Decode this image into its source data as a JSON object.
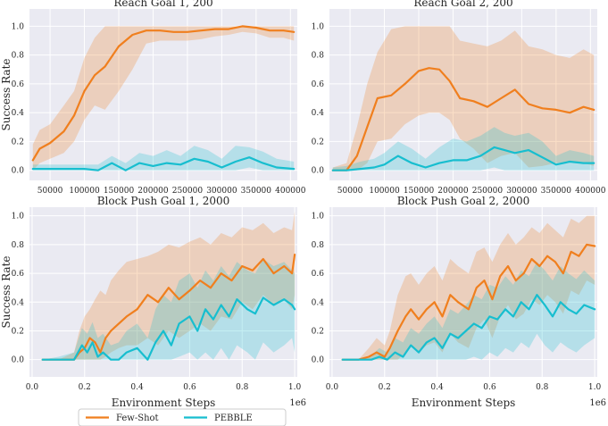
{
  "chart_data": [
    {
      "type": "line",
      "title": "Reach Goal 1, 200",
      "xlabel": "",
      "ylabel": "Success Rate",
      "xlim": [
        20000,
        410000
      ],
      "ylim": [
        -0.07,
        1.12
      ],
      "xticks": [
        50000,
        100000,
        150000,
        200000,
        250000,
        300000,
        350000,
        400000
      ],
      "xtick_labels": [
        "50000",
        "100000",
        "150000",
        "200000",
        "250000",
        "300000",
        "350000",
        "400000"
      ],
      "yticks": [
        0.0,
        0.2,
        0.4,
        0.6,
        0.8,
        1.0
      ],
      "ytick_labels": [
        "0.0",
        "0.2",
        "0.4",
        "0.6",
        "0.8",
        "1.0"
      ],
      "series": [
        {
          "name": "Few-Shot",
          "color": "#f07f1e",
          "x": [
            25000,
            35000,
            50000,
            70000,
            85000,
            100000,
            115000,
            130000,
            150000,
            170000,
            190000,
            210000,
            230000,
            250000,
            270000,
            290000,
            310000,
            330000,
            350000,
            370000,
            390000,
            405000
          ],
          "y": [
            0.07,
            0.15,
            0.19,
            0.27,
            0.38,
            0.55,
            0.66,
            0.72,
            0.86,
            0.94,
            0.97,
            0.97,
            0.96,
            0.96,
            0.97,
            0.98,
            0.98,
            1.0,
            0.99,
            0.97,
            0.97,
            0.96
          ],
          "lower": [
            0.0,
            0.05,
            0.08,
            0.12,
            0.2,
            0.35,
            0.45,
            0.42,
            0.55,
            0.7,
            0.88,
            0.9,
            0.9,
            0.9,
            0.91,
            0.93,
            0.94,
            0.96,
            0.95,
            0.92,
            0.92,
            0.9
          ],
          "upper": [
            0.18,
            0.28,
            0.32,
            0.45,
            0.55,
            0.78,
            0.92,
            1.0,
            1.0,
            1.0,
            1.0,
            1.0,
            1.0,
            1.0,
            1.0,
            1.0,
            1.0,
            1.0,
            1.0,
            1.0,
            1.0,
            1.0
          ]
        },
        {
          "name": "PEBBLE",
          "color": "#17becf",
          "x": [
            25000,
            50000,
            75000,
            100000,
            120000,
            140000,
            160000,
            180000,
            200000,
            220000,
            240000,
            260000,
            280000,
            300000,
            320000,
            340000,
            360000,
            380000,
            405000
          ],
          "y": [
            0.01,
            0.01,
            0.01,
            0.01,
            0.0,
            0.05,
            0.0,
            0.05,
            0.03,
            0.05,
            0.04,
            0.08,
            0.06,
            0.02,
            0.06,
            0.09,
            0.05,
            0.02,
            0.01
          ],
          "lower": [
            0.0,
            0.0,
            0.0,
            0.0,
            0.0,
            0.0,
            0.0,
            0.0,
            0.0,
            0.0,
            0.0,
            0.0,
            0.0,
            0.0,
            0.0,
            0.02,
            0.0,
            0.0,
            0.0
          ],
          "upper": [
            0.04,
            0.04,
            0.04,
            0.04,
            0.04,
            0.1,
            0.05,
            0.12,
            0.1,
            0.14,
            0.1,
            0.17,
            0.14,
            0.08,
            0.17,
            0.16,
            0.13,
            0.08,
            0.06
          ]
        }
      ]
    },
    {
      "type": "line",
      "title": "Reach Goal 2, 200",
      "xlabel": "",
      "ylabel": "",
      "xlim": [
        20000,
        410000
      ],
      "ylim": [
        -0.07,
        1.12
      ],
      "xticks": [
        50000,
        100000,
        150000,
        200000,
        250000,
        300000,
        350000,
        400000
      ],
      "xtick_labels": [
        "50000",
        "100000",
        "150000",
        "200000",
        "250000",
        "300000",
        "350000",
        "400000"
      ],
      "yticks": [
        0.0,
        0.2,
        0.4,
        0.6,
        0.8,
        1.0
      ],
      "ytick_labels": [
        "0.0",
        "0.2",
        "0.4",
        "0.6",
        "0.8",
        "1.0"
      ],
      "series": [
        {
          "name": "Few-Shot",
          "color": "#f07f1e",
          "x": [
            25000,
            45000,
            60000,
            75000,
            90000,
            110000,
            130000,
            150000,
            165000,
            180000,
            195000,
            210000,
            230000,
            250000,
            270000,
            290000,
            310000,
            330000,
            350000,
            370000,
            390000,
            405000
          ],
          "y": [
            0.0,
            0.0,
            0.1,
            0.3,
            0.5,
            0.52,
            0.6,
            0.69,
            0.71,
            0.7,
            0.62,
            0.5,
            0.48,
            0.44,
            0.5,
            0.56,
            0.46,
            0.43,
            0.42,
            0.4,
            0.44,
            0.42
          ],
          "lower": [
            0.0,
            0.0,
            0.0,
            0.05,
            0.2,
            0.22,
            0.32,
            0.38,
            0.4,
            0.4,
            0.35,
            0.22,
            0.15,
            0.05,
            0.1,
            0.12,
            0.02,
            0.03,
            0.05,
            0.06,
            0.05,
            0.03
          ],
          "upper": [
            0.02,
            0.05,
            0.3,
            0.6,
            0.82,
            0.98,
            1.0,
            1.0,
            1.0,
            1.0,
            1.0,
            0.9,
            0.88,
            0.86,
            0.9,
            0.97,
            0.86,
            0.84,
            0.8,
            0.78,
            0.84,
            0.8
          ]
        },
        {
          "name": "PEBBLE",
          "color": "#17becf",
          "x": [
            25000,
            45000,
            65000,
            85000,
            100000,
            120000,
            140000,
            160000,
            180000,
            200000,
            220000,
            240000,
            260000,
            275000,
            290000,
            310000,
            330000,
            350000,
            370000,
            390000,
            405000
          ],
          "y": [
            0.0,
            0.0,
            0.01,
            0.02,
            0.04,
            0.1,
            0.05,
            0.02,
            0.05,
            0.07,
            0.07,
            0.1,
            0.16,
            0.14,
            0.12,
            0.14,
            0.09,
            0.04,
            0.06,
            0.05,
            0.05
          ],
          "lower": [
            0.0,
            0.0,
            0.0,
            0.0,
            0.0,
            0.0,
            0.0,
            0.0,
            0.0,
            0.0,
            0.0,
            0.0,
            0.02,
            0.0,
            0.0,
            0.0,
            0.0,
            0.0,
            0.0,
            0.0,
            0.0
          ],
          "upper": [
            0.02,
            0.03,
            0.06,
            0.08,
            0.12,
            0.2,
            0.15,
            0.08,
            0.16,
            0.22,
            0.2,
            0.24,
            0.3,
            0.26,
            0.24,
            0.26,
            0.2,
            0.1,
            0.14,
            0.12,
            0.1
          ]
        }
      ]
    },
    {
      "type": "line",
      "title": "Block Push Goal 1, 2000",
      "xlabel": "Environment Steps",
      "ylabel": "Success Rate",
      "xlim": [
        -0.01,
        1.01
      ],
      "ylim": [
        -0.12,
        1.06
      ],
      "xticks": [
        0.0,
        0.2,
        0.4,
        0.6,
        0.8,
        1.0
      ],
      "xtick_labels": [
        "0.0",
        "0.2",
        "0.4",
        "0.6",
        "0.8",
        "1.0"
      ],
      "yticks": [
        0.0,
        0.2,
        0.4,
        0.6,
        0.8,
        1.0
      ],
      "ytick_labels": [
        "0.0",
        "0.2",
        "0.4",
        "0.6",
        "0.8",
        "1.0"
      ],
      "sci_label": "1e6",
      "series": [
        {
          "name": "Few-Shot",
          "color": "#f07f1e",
          "x": [
            0.04,
            0.1,
            0.16,
            0.18,
            0.2,
            0.22,
            0.24,
            0.26,
            0.28,
            0.3,
            0.33,
            0.36,
            0.4,
            0.44,
            0.48,
            0.52,
            0.56,
            0.6,
            0.64,
            0.68,
            0.72,
            0.76,
            0.8,
            0.84,
            0.88,
            0.92,
            0.96,
            0.99,
            1.0
          ],
          "y": [
            0.0,
            0.0,
            0.0,
            0.05,
            0.08,
            0.15,
            0.12,
            0.05,
            0.15,
            0.2,
            0.25,
            0.3,
            0.35,
            0.45,
            0.4,
            0.5,
            0.42,
            0.48,
            0.55,
            0.5,
            0.6,
            0.55,
            0.65,
            0.62,
            0.7,
            0.6,
            0.65,
            0.6,
            0.73
          ],
          "lower": [
            0.0,
            0.0,
            0.0,
            0.0,
            0.0,
            0.0,
            0.0,
            0.0,
            0.02,
            0.05,
            0.08,
            0.1,
            0.1,
            0.15,
            0.1,
            0.2,
            0.15,
            0.2,
            0.25,
            0.2,
            0.3,
            0.28,
            0.4,
            0.35,
            0.45,
            0.38,
            0.42,
            0.35,
            0.45
          ],
          "upper": [
            0.0,
            0.0,
            0.05,
            0.2,
            0.3,
            0.35,
            0.42,
            0.48,
            0.45,
            0.55,
            0.62,
            0.68,
            0.7,
            0.72,
            0.75,
            0.8,
            0.78,
            0.82,
            0.85,
            0.8,
            0.88,
            0.85,
            0.92,
            0.9,
            0.95,
            0.88,
            0.92,
            0.9,
            1.03
          ]
        },
        {
          "name": "PEBBLE",
          "color": "#17becf",
          "x": [
            0.04,
            0.1,
            0.16,
            0.19,
            0.21,
            0.23,
            0.25,
            0.27,
            0.3,
            0.33,
            0.36,
            0.4,
            0.44,
            0.47,
            0.5,
            0.53,
            0.56,
            0.6,
            0.63,
            0.66,
            0.69,
            0.72,
            0.75,
            0.78,
            0.82,
            0.85,
            0.88,
            0.92,
            0.96,
            0.99,
            1.0
          ],
          "y": [
            0.0,
            0.0,
            0.0,
            0.1,
            0.05,
            0.12,
            0.02,
            0.05,
            0.0,
            0.0,
            0.05,
            0.08,
            0.0,
            0.12,
            0.2,
            0.1,
            0.25,
            0.3,
            0.2,
            0.35,
            0.28,
            0.38,
            0.3,
            0.42,
            0.35,
            0.32,
            0.43,
            0.38,
            0.42,
            0.38,
            0.35
          ],
          "lower": [
            0.0,
            0.0,
            0.0,
            0.0,
            0.0,
            0.0,
            0.0,
            0.0,
            0.0,
            0.0,
            0.0,
            0.0,
            0.0,
            0.0,
            0.0,
            0.0,
            0.02,
            0.05,
            0.0,
            0.05,
            0.0,
            0.08,
            0.0,
            0.1,
            0.05,
            0.0,
            0.12,
            0.05,
            0.1,
            0.15,
            0.05
          ],
          "upper": [
            0.0,
            0.02,
            0.05,
            0.22,
            0.18,
            0.26,
            0.15,
            0.18,
            0.1,
            0.12,
            0.2,
            0.25,
            0.15,
            0.35,
            0.45,
            0.4,
            0.55,
            0.6,
            0.5,
            0.62,
            0.55,
            0.65,
            0.58,
            0.68,
            0.62,
            0.6,
            0.7,
            0.65,
            0.68,
            0.62,
            0.6
          ]
        }
      ]
    },
    {
      "type": "line",
      "title": "Block Push Goal 2, 2000",
      "xlabel": "Environment Steps",
      "ylabel": "",
      "xlim": [
        -0.01,
        1.01
      ],
      "ylim": [
        -0.12,
        1.06
      ],
      "xticks": [
        0.0,
        0.2,
        0.4,
        0.6,
        0.8,
        1.0
      ],
      "xtick_labels": [
        "0.0",
        "0.2",
        "0.4",
        "0.6",
        "0.8",
        "1.0"
      ],
      "yticks": [
        0.0,
        0.2,
        0.4,
        0.6,
        0.8,
        1.0
      ],
      "ytick_labels": [
        "0.0",
        "0.2",
        "0.4",
        "0.6",
        "0.8",
        "1.0"
      ],
      "sci_label": "1e6",
      "series": [
        {
          "name": "Few-Shot",
          "color": "#f07f1e",
          "x": [
            0.04,
            0.1,
            0.14,
            0.17,
            0.2,
            0.22,
            0.25,
            0.28,
            0.3,
            0.33,
            0.36,
            0.39,
            0.42,
            0.45,
            0.48,
            0.52,
            0.55,
            0.58,
            0.61,
            0.64,
            0.67,
            0.7,
            0.73,
            0.76,
            0.79,
            0.82,
            0.85,
            0.88,
            0.91,
            0.94,
            0.97,
            1.0
          ],
          "y": [
            0.0,
            0.0,
            0.02,
            0.05,
            0.02,
            0.08,
            0.2,
            0.3,
            0.35,
            0.28,
            0.35,
            0.4,
            0.3,
            0.45,
            0.4,
            0.35,
            0.5,
            0.55,
            0.42,
            0.58,
            0.65,
            0.55,
            0.6,
            0.7,
            0.65,
            0.72,
            0.68,
            0.6,
            0.75,
            0.72,
            0.8,
            0.79
          ],
          "lower": [
            0.0,
            0.0,
            0.0,
            0.0,
            0.0,
            0.0,
            0.0,
            0.05,
            0.1,
            0.05,
            0.1,
            0.12,
            0.05,
            0.18,
            0.12,
            0.08,
            0.22,
            0.28,
            0.15,
            0.3,
            0.38,
            0.28,
            0.32,
            0.42,
            0.38,
            0.45,
            0.4,
            0.32,
            0.48,
            0.45,
            0.55,
            0.52
          ],
          "upper": [
            0.0,
            0.0,
            0.08,
            0.15,
            0.1,
            0.2,
            0.45,
            0.58,
            0.6,
            0.52,
            0.6,
            0.65,
            0.55,
            0.7,
            0.65,
            0.6,
            0.75,
            0.78,
            0.68,
            0.8,
            0.88,
            0.8,
            0.85,
            0.92,
            0.88,
            0.95,
            0.9,
            0.85,
            0.98,
            0.95,
            1.0,
            1.0
          ]
        },
        {
          "name": "PEBBLE",
          "color": "#17becf",
          "x": [
            0.04,
            0.1,
            0.15,
            0.18,
            0.21,
            0.24,
            0.27,
            0.3,
            0.33,
            0.36,
            0.39,
            0.42,
            0.45,
            0.48,
            0.51,
            0.54,
            0.57,
            0.6,
            0.63,
            0.66,
            0.69,
            0.72,
            0.75,
            0.78,
            0.81,
            0.84,
            0.87,
            0.9,
            0.93,
            0.96,
            1.0
          ],
          "y": [
            0.0,
            0.0,
            0.0,
            0.02,
            0.0,
            0.05,
            0.02,
            0.1,
            0.05,
            0.12,
            0.15,
            0.08,
            0.18,
            0.15,
            0.2,
            0.25,
            0.22,
            0.3,
            0.28,
            0.35,
            0.3,
            0.4,
            0.35,
            0.45,
            0.38,
            0.3,
            0.4,
            0.35,
            0.32,
            0.38,
            0.35
          ],
          "lower": [
            0.0,
            0.0,
            0.0,
            0.0,
            0.0,
            0.0,
            0.0,
            0.0,
            0.0,
            0.0,
            0.0,
            0.0,
            0.0,
            0.0,
            0.0,
            0.02,
            0.0,
            0.05,
            0.02,
            0.08,
            0.05,
            0.12,
            0.08,
            0.18,
            0.1,
            0.05,
            0.12,
            0.08,
            0.05,
            0.1,
            0.15
          ],
          "upper": [
            0.0,
            0.0,
            0.03,
            0.08,
            0.05,
            0.15,
            0.12,
            0.22,
            0.18,
            0.25,
            0.3,
            0.22,
            0.35,
            0.32,
            0.38,
            0.45,
            0.42,
            0.52,
            0.5,
            0.58,
            0.52,
            0.62,
            0.58,
            0.68,
            0.62,
            0.55,
            0.65,
            0.6,
            0.56,
            0.62,
            0.55
          ]
        }
      ]
    }
  ],
  "legend": {
    "items": [
      {
        "label": "Few-Shot",
        "color": "#f07f1e"
      },
      {
        "label": "PEBBLE",
        "color": "#17becf"
      }
    ]
  }
}
